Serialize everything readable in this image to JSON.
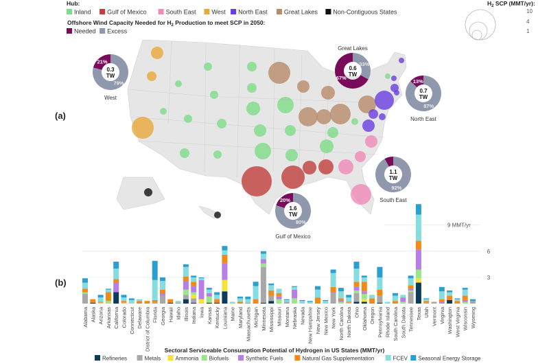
{
  "panel_labels": {
    "a": "(a)",
    "b": "(b)"
  },
  "hub_legend": {
    "title": "Hub:",
    "items": [
      {
        "label": "Inland",
        "color": "#7fdc8a"
      },
      {
        "label": "Gulf of Mexico",
        "color": "#c0403c"
      },
      {
        "label": "South East",
        "color": "#f08ab8"
      },
      {
        "label": "West",
        "color": "#e8a93a"
      },
      {
        "label": "North East",
        "color": "#6a3de0"
      },
      {
        "label": "Great Lakes",
        "color": "#b88b6a"
      },
      {
        "label": "Non-Contiguous States",
        "color": "#111111"
      }
    ]
  },
  "wind_legend": {
    "title_pre": "Offshore Wind Capacity Needed for H",
    "title_sub": "2",
    "title_post": " Production to meet SCP in 2050:",
    "items": [
      {
        "label": "Needed",
        "color": "#7a0a5a"
      },
      {
        "label": "Excess",
        "color": "#8f98ad"
      }
    ]
  },
  "size_legend": {
    "title_pre": "H",
    "title_sub": "2",
    "title_post": " SCP (MMT/yr):",
    "values": [
      "10",
      "4",
      "1"
    ]
  },
  "donuts": [
    {
      "hub": "West",
      "capacity": "0.3",
      "unit": "TW",
      "needed_pct": 21,
      "excess_pct": 79,
      "needed_label": "21%",
      "excess_label": "79%"
    },
    {
      "hub": "Great Lakes",
      "capacity": "0.6",
      "unit": "TW",
      "needed_pct": 67,
      "excess_pct": 33,
      "needed_label": "67%",
      "excess_label": "33%"
    },
    {
      "hub": "North East",
      "capacity": "0.7",
      "unit": "TW",
      "needed_pct": 13,
      "excess_pct": 87,
      "needed_label": "13%",
      "excess_label": "87%"
    },
    {
      "hub": "South East",
      "capacity": "1.1",
      "unit": "TW",
      "needed_pct": 8,
      "excess_pct": 92,
      "needed_label": "",
      "excess_label": "92%"
    },
    {
      "hub": "Gulf of Mexico",
      "capacity": "1.6",
      "unit": "TW",
      "needed_pct": 20,
      "excess_pct": 80,
      "needed_label": "20%",
      "excess_label": "80%"
    }
  ],
  "chart_data": {
    "type": "bar",
    "stacked": true,
    "title": "",
    "xlabel": "Sectoral Serviceable Consumption Potential of Hydrogen in US States (MMT/yr)",
    "ylabel": "",
    "ylim": [
      0,
      12
    ],
    "yticks": [
      {
        "value": 3,
        "label": "3"
      },
      {
        "value": 6,
        "label": "6"
      },
      {
        "value": 9,
        "label": "9 MMT/yr"
      }
    ],
    "grid": true,
    "legend_position": "bottom",
    "series": [
      {
        "name": "Refineries",
        "color": "#0d3b5c"
      },
      {
        "name": "Metals",
        "color": "#a8a8a8"
      },
      {
        "name": "Ammonia",
        "color": "#f5e23a"
      },
      {
        "name": "Biofuels",
        "color": "#9be58a"
      },
      {
        "name": "Synthetic Fuels",
        "color": "#b77ee8"
      },
      {
        "name": "Natural Gas Supplementation",
        "color": "#f28a1a"
      },
      {
        "name": "FCEV",
        "color": "#86dde0"
      },
      {
        "name": "Seasonal Energy Storage",
        "color": "#2a9fd0"
      }
    ],
    "categories": [
      "Alabama",
      "Alaska",
      "Arizona",
      "Arkansas",
      "California",
      "Colorado",
      "Connecticut",
      "Delaware",
      "District of Columbia",
      "Florida",
      "Georgia",
      "Hawaii",
      "Idaho",
      "Illinois",
      "Indiana",
      "Iowa",
      "Kansas",
      "Kentucky",
      "Louisiana",
      "Maine",
      "Maryland",
      "Massachusetts",
      "Michigan",
      "Minnesota",
      "Mississippi",
      "Missouri",
      "Montana",
      "Nebraska",
      "Nevada",
      "New Hampshire",
      "New Jersey",
      "New Mexico",
      "New York",
      "North Carolina",
      "North Dakota",
      "Ohio",
      "Oklahoma",
      "Oregon",
      "Pennsylvania",
      "Rhode Island",
      "South Carolina",
      "South Dakota",
      "Tennessee",
      "Texas",
      "Utah",
      "Vermont",
      "Virginia",
      "Washington",
      "West Virginia",
      "Wisconsin",
      "Wyoming"
    ],
    "values": [
      [
        0,
        1.1,
        0,
        0.2,
        0,
        0.4,
        0.7,
        0.5
      ],
      [
        0.1,
        0,
        0,
        0,
        0,
        0.4,
        0,
        0
      ],
      [
        0,
        0,
        0,
        0.1,
        0,
        0.1,
        0.5,
        0.3
      ],
      [
        0,
        0,
        0,
        0.3,
        0,
        1.0,
        0.3,
        0.1
      ],
      [
        1.3,
        0,
        0,
        0,
        1.1,
        0.4,
        1.2,
        0.8
      ],
      [
        0,
        0,
        0,
        0.1,
        0,
        0.2,
        0.4,
        0.3
      ],
      [
        0,
        0,
        0,
        0,
        0,
        0,
        0.4,
        0.2
      ],
      [
        0,
        0,
        0,
        0,
        0,
        0.3,
        0.2,
        0
      ],
      [
        0,
        0,
        0,
        0,
        0,
        0.3,
        0,
        0
      ],
      [
        0,
        0.1,
        0,
        0,
        0,
        0.3,
        2.3,
        2.2
      ],
      [
        0,
        0.9,
        0,
        0,
        0.2,
        0.5,
        1.0,
        0.4
      ],
      [
        0.1,
        0,
        0,
        0,
        0,
        0.4,
        0,
        0
      ],
      [
        0,
        0,
        0,
        0,
        0,
        0.1,
        0.2,
        0
      ],
      [
        0.5,
        0.5,
        0,
        0.6,
        1.0,
        0.5,
        1.1,
        0.3
      ],
      [
        0.1,
        0.5,
        0.4,
        0.3,
        0.7,
        0.5,
        0.5,
        0.2
      ],
      [
        0,
        0,
        0.5,
        0,
        2.2,
        0,
        0.2,
        0.1
      ],
      [
        0.1,
        0,
        0,
        0.7,
        0.4,
        0,
        0.4,
        0.2
      ],
      [
        0.1,
        0,
        0,
        0,
        0,
        0.4,
        0.5,
        0.3
      ],
      [
        1.4,
        0,
        1.3,
        0,
        1.9,
        1.0,
        0.5,
        0.5
      ],
      [
        0,
        0,
        0,
        0,
        0,
        0,
        0.2,
        0
      ],
      [
        0,
        0,
        0,
        0,
        0,
        0.2,
        0.4,
        0.2
      ],
      [
        0,
        0,
        0,
        0,
        0,
        0.1,
        0.4,
        0.3
      ],
      [
        0,
        0,
        0,
        0,
        0,
        0.5,
        1.5,
        0.5
      ],
      [
        0.1,
        4.1,
        0,
        0.4,
        0.5,
        0,
        0.6,
        0.3
      ],
      [
        0.3,
        0.6,
        0,
        0,
        0,
        0.6,
        0.6,
        0.2
      ],
      [
        0,
        0,
        0,
        0.5,
        0.3,
        0.4,
        0.5,
        0
      ],
      [
        0,
        0.2,
        0,
        0,
        0,
        0,
        0.2,
        0.1
      ],
      [
        0,
        0,
        0,
        0.6,
        1.0,
        0,
        0.3,
        0.1
      ],
      [
        0,
        0,
        0,
        0,
        0,
        0,
        0.3,
        0.1
      ],
      [
        0,
        0,
        0,
        0,
        0,
        0,
        0.2,
        0.1
      ],
      [
        0,
        0,
        0,
        0,
        0,
        0.7,
        0.9,
        0.4
      ],
      [
        0,
        0,
        0,
        0,
        0,
        0,
        0.3,
        0.1
      ],
      [
        0,
        1.2,
        0,
        0,
        0.1,
        0.6,
        1.6,
        0.4
      ],
      [
        0,
        0,
        0,
        0.2,
        0.2,
        0.2,
        0.8,
        0.4
      ],
      [
        0,
        0,
        0,
        0.1,
        0,
        0.1,
        0.5,
        0.3
      ],
      [
        0.2,
        1.0,
        0,
        0.3,
        0.4,
        0.6,
        1.5,
        0.8
      ],
      [
        0.2,
        0,
        0.3,
        0.6,
        0.3,
        1.1,
        0.5,
        0.2
      ],
      [
        0,
        0,
        0,
        0,
        0,
        0.6,
        0.4,
        0
      ],
      [
        0.1,
        0.8,
        0,
        0,
        0,
        0.7,
        1.4,
        1.2
      ],
      [
        0,
        0,
        0,
        0,
        0,
        0,
        0.2,
        0
      ],
      [
        0,
        0,
        0,
        0,
        0,
        0.3,
        0.6,
        0.3
      ],
      [
        0,
        0,
        0,
        0.2,
        0.5,
        0,
        0.3,
        0
      ],
      [
        0,
        1.3,
        0,
        0.2,
        0.2,
        0.4,
        0.8,
        0.3
      ],
      [
        2.4,
        0,
        0.5,
        1.0,
        2.3,
        1.0,
        3.0,
        1.2
      ],
      [
        0,
        0.1,
        0,
        0,
        0,
        0.2,
        0.2,
        0.1
      ],
      [
        0,
        0.2,
        0,
        0,
        0,
        0,
        0,
        0
      ],
      [
        0,
        0,
        0,
        0,
        0.2,
        0.3,
        0.9,
        0.5
      ],
      [
        0.4,
        0,
        0,
        0,
        0,
        0.5,
        0.4,
        0.2
      ],
      [
        0,
        0,
        0,
        0,
        0,
        0.3,
        0.2,
        0.1
      ],
      [
        0,
        0,
        0,
        0.2,
        0.2,
        0.5,
        0.7,
        0.2
      ],
      [
        0,
        0.3,
        0,
        0,
        0,
        0,
        0,
        0.2
      ]
    ]
  }
}
